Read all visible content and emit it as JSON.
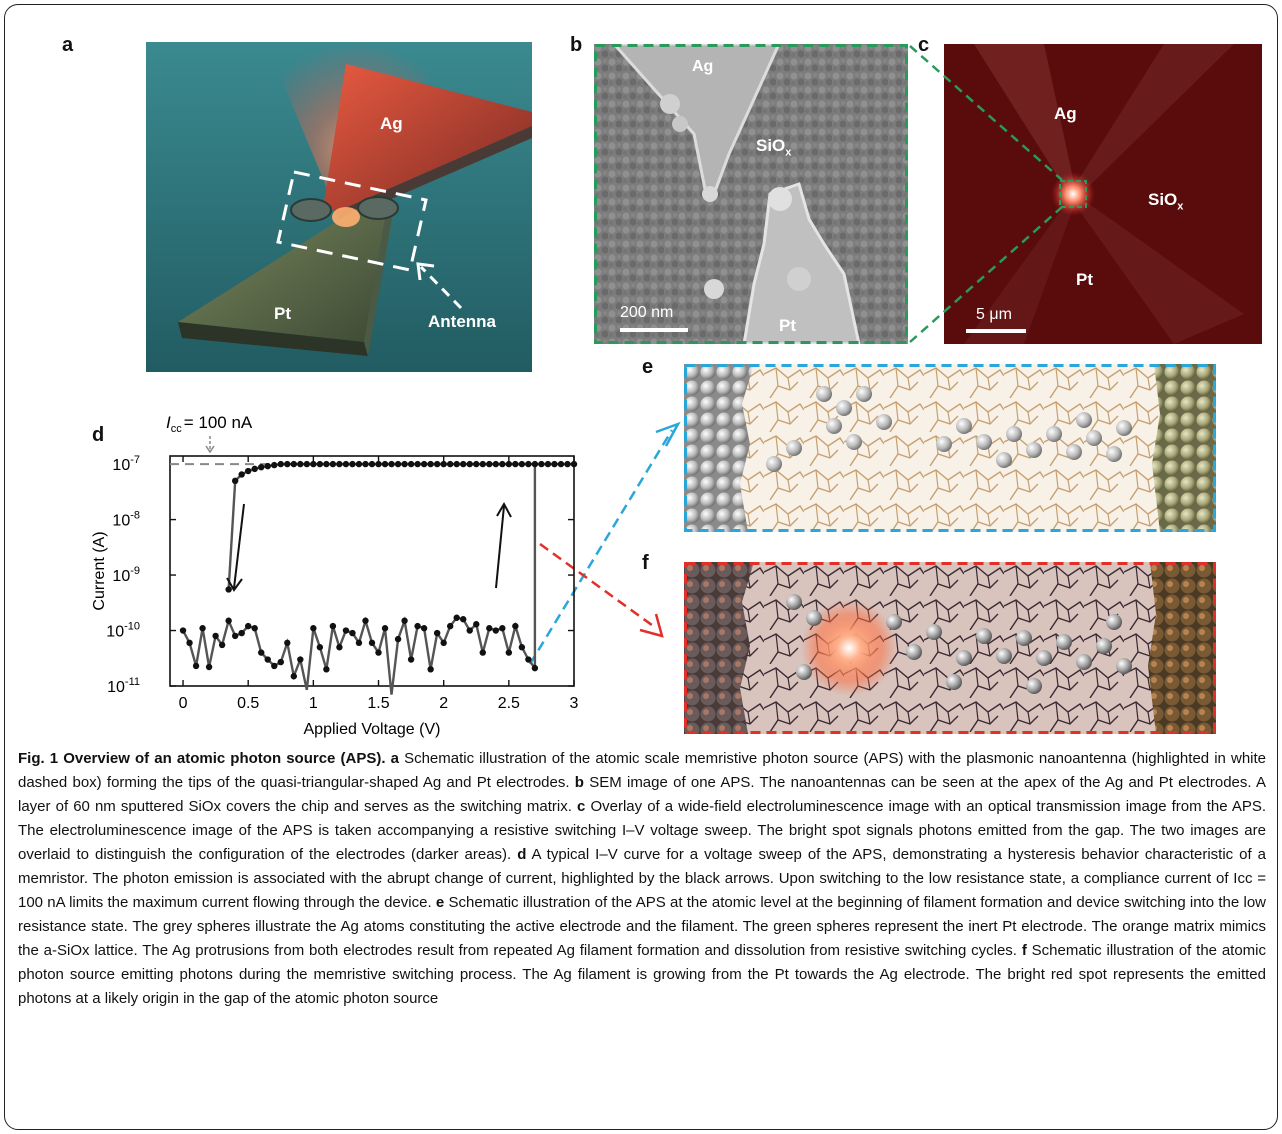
{
  "panels": {
    "a": {
      "letter": "a",
      "ag": "Ag",
      "pt": "Pt",
      "antenna": "Antenna"
    },
    "b": {
      "letter": "b",
      "ag": "Ag",
      "siox_main": "SiO",
      "siox_sub": "x",
      "pt": "Pt",
      "scale": "200 nm"
    },
    "c": {
      "letter": "c",
      "ag": "Ag",
      "siox_main": "SiO",
      "siox_sub": "x",
      "pt": "Pt",
      "scale": "5 μm"
    },
    "d": {
      "letter": "d"
    },
    "e": {
      "letter": "e"
    },
    "f": {
      "letter": "f"
    }
  },
  "chart_data": {
    "type": "line",
    "y_scale": "log",
    "xlabel": "Applied Voltage (V)",
    "ylabel": "Current (A)",
    "xlim": [
      -0.1,
      3.0
    ],
    "ylim": [
      1e-11,
      1.4e-07
    ],
    "x_ticks": [
      0,
      0.5,
      1,
      1.5,
      2,
      2.5,
      3
    ],
    "x_tick_labels": [
      "0",
      "0.5",
      "1",
      "1.5",
      "2",
      "2.5",
      "3"
    ],
    "y_ticks": [
      1e-11,
      1e-10,
      1e-09,
      1e-08,
      1e-07
    ],
    "y_tick_labels": [
      {
        "base": "10",
        "exp": "-11"
      },
      {
        "base": "10",
        "exp": "-10"
      },
      {
        "base": "10",
        "exp": "-9"
      },
      {
        "base": "10",
        "exp": "-8"
      },
      {
        "base": "10",
        "exp": "-7"
      }
    ],
    "annotation": {
      "icc_main": "I",
      "icc_sub": "cc",
      "icc_value": "= 100 nA",
      "compliance": 1e-07
    },
    "series": [
      {
        "values_x": [
          0,
          0.05,
          0.1,
          0.15,
          0.2,
          0.25,
          0.3,
          0.35,
          0.4,
          0.45,
          0.5,
          0.55,
          0.6,
          0.65,
          0.7,
          0.75,
          0.8,
          0.85,
          0.9,
          0.95,
          1.0,
          1.05,
          1.1,
          1.15,
          1.2,
          1.25,
          1.3,
          1.35,
          1.4,
          1.45,
          1.5,
          1.55,
          1.6,
          1.65,
          1.7,
          1.75,
          1.8,
          1.85,
          1.9,
          1.95,
          2.0,
          2.05,
          2.1,
          2.15,
          2.2,
          2.25,
          2.3,
          2.35,
          2.4,
          2.45,
          2.5,
          2.55,
          2.6,
          2.65,
          2.7
        ],
        "values_y": [
          1e-10,
          6e-11,
          2.3e-11,
          1.1e-10,
          2.2e-11,
          8e-11,
          5.5e-11,
          1.5e-10,
          8e-11,
          9e-11,
          1.2e-10,
          1.1e-10,
          4e-11,
          3e-11,
          2.3e-11,
          2.7e-11,
          6e-11,
          1.5e-11,
          3e-11,
          8.5e-12,
          1.1e-10,
          5e-11,
          2e-11,
          1.2e-10,
          5e-11,
          1e-10,
          9e-11,
          6e-11,
          1.5e-10,
          6e-11,
          4e-11,
          1.1e-10,
          6e-12,
          7e-11,
          1.5e-10,
          3e-11,
          1.2e-10,
          1.1e-10,
          2e-11,
          9e-11,
          6e-11,
          1.2e-10,
          1.7e-10,
          1.6e-10,
          1e-10,
          1.3e-10,
          4e-11,
          1.1e-10,
          1e-10,
          1.1e-10,
          4e-11,
          1.2e-10,
          5e-11,
          3e-11,
          2.1e-11
        ]
      },
      {
        "values_x": [
          0.35,
          0.4,
          0.45,
          0.5,
          0.55,
          0.6,
          0.65,
          0.7,
          0.75,
          0.8,
          0.85,
          0.9,
          0.95,
          1.0,
          1.05,
          1.1,
          1.15,
          1.2,
          1.25,
          1.3,
          1.35,
          1.4,
          1.45,
          1.5,
          1.55,
          1.6,
          1.65,
          1.7,
          1.75,
          1.8,
          1.85,
          1.9,
          1.95,
          2.0,
          2.05,
          2.1,
          2.15,
          2.2,
          2.25,
          2.3,
          2.35,
          2.4,
          2.45,
          2.5,
          2.55,
          2.6,
          2.65,
          2.7,
          2.75,
          2.8,
          2.85,
          2.9,
          2.95,
          3.0
        ],
        "values_y": [
          5.5e-10,
          5e-08,
          6.5e-08,
          7.5e-08,
          8.2e-08,
          8.8e-08,
          9.2e-08,
          9.6e-08,
          1e-07,
          1e-07,
          1e-07,
          1e-07,
          1e-07,
          1e-07,
          1e-07,
          1e-07,
          1e-07,
          1e-07,
          1e-07,
          1e-07,
          1e-07,
          1e-07,
          1e-07,
          1e-07,
          1e-07,
          1e-07,
          1e-07,
          1e-07,
          1e-07,
          1e-07,
          1e-07,
          1e-07,
          1e-07,
          1e-07,
          1e-07,
          1e-07,
          1e-07,
          1e-07,
          1e-07,
          1e-07,
          1e-07,
          1e-07,
          1e-07,
          1e-07,
          1e-07,
          1e-07,
          1e-07,
          1e-07,
          1e-07,
          1e-07,
          1e-07,
          1e-07,
          1e-07,
          1e-07
        ]
      }
    ]
  },
  "caption": {
    "title": "Fig. 1 Overview of an atomic photon source (APS).",
    "a_letter": "a",
    "a_text": "Schematic illustration of the atomic scale memristive photon source (APS) with the plasmonic nanoantenna (highlighted in white dashed box) forming the tips of the quasi-triangular-shaped Ag and Pt electrodes.",
    "b_letter": "b",
    "b_text": "SEM image of one APS. The nanoantennas can be seen at the apex of the Ag and Pt electrodes. A layer of 60 nm sputtered SiOx covers the chip and serves as the switching matrix.",
    "c_letter": "c",
    "c_text": "Overlay of a wide-field electroluminescence image with an optical transmission image from the APS. The electroluminescence image of the APS is taken accompanying a resistive switching I–V voltage sweep. The bright spot signals photons emitted from the gap. The two images are overlaid to distinguish the configuration of the electrodes (darker areas).",
    "d_letter": "d",
    "d_text": "A typical I–V curve for a voltage sweep of the APS, demonstrating a hysteresis behavior characteristic of a memristor. The photon emission is associated with the abrupt change of current, highlighted by the black arrows. Upon switching to the low resistance state, a compliance current of Icc = 100 nA limits the maximum current flowing through the device.",
    "e_letter": "e",
    "e_text": "Schematic illustration of the APS at the atomic level at the beginning of filament formation and device switching into the low resistance state. The grey spheres illustrate the Ag atoms constituting the active electrode and the filament. The green spheres represent the inert Pt electrode. The orange matrix mimics the a-SiOx lattice. The Ag protrusions from both electrodes result from repeated Ag filament formation and dissolution from resistive switching cycles.",
    "f_letter": "f",
    "f_text": "Schematic illustration of the atomic photon source emitting photons during the memristive switching process. The Ag filament is growing from the Pt towards the Ag electrode. The bright red spot represents the emitted photons at a likely origin in the gap of the atomic photon source"
  },
  "colors": {
    "green_dash": "#2a9a5a",
    "blue_dash": "#2aa6d8",
    "red_dash": "#e0302a",
    "teal_bg": "#2f7a80",
    "maroon_bg": "#5a0c0c"
  }
}
